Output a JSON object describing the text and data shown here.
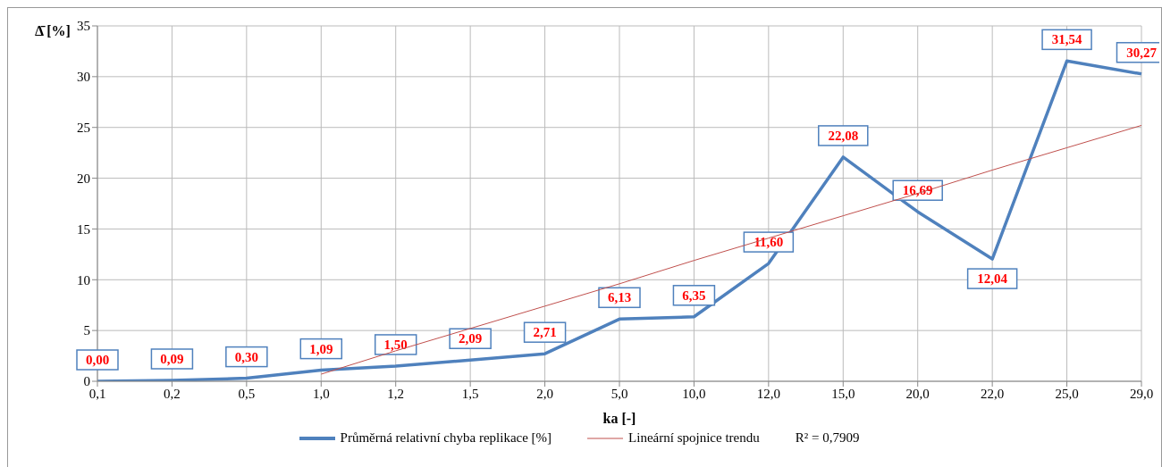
{
  "chart_data": {
    "type": "line",
    "xlabel": "ka [-]",
    "ylabel": "Δ̄ [%]",
    "categories": [
      "0,1",
      "0,2",
      "0,5",
      "1,0",
      "1,2",
      "1,5",
      "2,0",
      "5,0",
      "10,0",
      "12,0",
      "15,0",
      "20,0",
      "22,0",
      "25,0",
      "29,0"
    ],
    "series": [
      {
        "name": "Průměrná relativní chyba replikace [%]",
        "color": "#4f81bd",
        "values": [
          0.0,
          0.09,
          0.3,
          1.09,
          1.5,
          2.09,
          2.71,
          6.13,
          6.35,
          11.6,
          22.08,
          16.69,
          12.04,
          31.54,
          30.27
        ],
        "value_labels": [
          "0,00",
          "0,09",
          "0,30",
          "1,09",
          "1,50",
          "2,09",
          "2,71",
          "6,13",
          "6,35",
          "11,60",
          "22,08",
          "16,69",
          "12,04",
          "31,54",
          "30,27"
        ]
      },
      {
        "name": "Lineární spojnice trendu",
        "type": "line",
        "color": "#c0504d",
        "values": [
          null,
          null,
          null,
          0.7,
          3.0,
          5.2,
          7.4,
          9.6,
          11.9,
          14.1,
          16.3,
          18.5,
          20.8,
          23.0,
          25.2
        ]
      }
    ],
    "ylim": [
      0,
      35
    ],
    "yticks": [
      0,
      5,
      10,
      15,
      20,
      25,
      30,
      35
    ],
    "grid": true,
    "legend": "bottom",
    "marker": "none",
    "line_style": "solid",
    "annotations": [
      "R² = 0,7909"
    ]
  }
}
